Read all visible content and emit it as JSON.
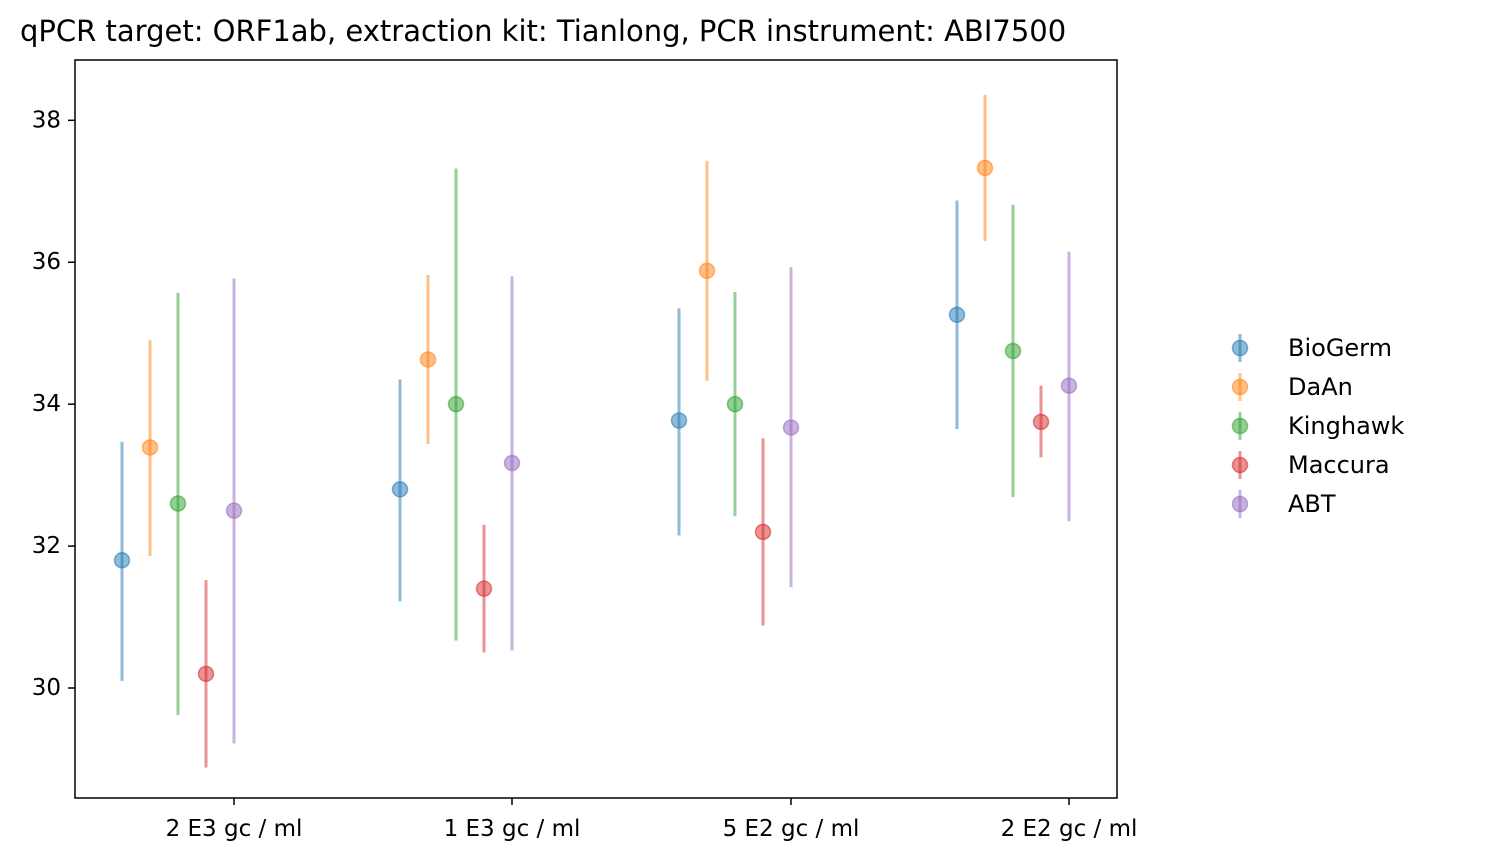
{
  "chart_data": {
    "type": "scatter",
    "title": "qPCR target: ORF1ab, extraction kit: Tianlong, PCR instrument: ABI7500",
    "xlabel": "",
    "ylabel": "",
    "categories": [
      "2 E3 gc / ml",
      "1 E3 gc / ml",
      "5 E2 gc / ml",
      "2 E2 gc / ml"
    ],
    "ylim": [
      28.45,
      38.85
    ],
    "yticks": [
      30,
      32,
      34,
      36,
      38
    ],
    "grid": false,
    "legend_position": "right",
    "series": [
      {
        "name": "BioGerm",
        "color": "#1f77b4",
        "values": [
          31.8,
          32.8,
          33.77,
          35.26
        ],
        "err_low": [
          30.1,
          31.22,
          32.15,
          33.65
        ],
        "err_high": [
          33.47,
          34.35,
          35.35,
          36.87
        ]
      },
      {
        "name": "DaAn",
        "color": "#ff7f0e",
        "values": [
          33.39,
          34.63,
          35.88,
          37.33
        ],
        "err_low": [
          31.86,
          33.44,
          34.33,
          36.3
        ],
        "err_high": [
          34.9,
          35.82,
          37.43,
          38.36
        ]
      },
      {
        "name": "Kinghawk",
        "color": "#2ca02c",
        "values": [
          32.6,
          34.0,
          34.0,
          34.75
        ],
        "err_low": [
          29.62,
          30.67,
          32.42,
          32.69
        ],
        "err_high": [
          35.57,
          37.32,
          35.58,
          36.81
        ]
      },
      {
        "name": "Maccura",
        "color": "#d62728",
        "values": [
          30.2,
          31.4,
          32.2,
          33.75
        ],
        "err_low": [
          28.88,
          30.5,
          30.88,
          33.25
        ],
        "err_high": [
          31.52,
          32.3,
          33.52,
          34.26
        ]
      },
      {
        "name": "ABT",
        "color": "#9467bd",
        "values": [
          32.5,
          33.17,
          33.67,
          34.26
        ],
        "err_low": [
          29.22,
          30.53,
          31.42,
          32.35
        ],
        "err_high": [
          35.77,
          35.8,
          35.93,
          36.15
        ]
      }
    ]
  }
}
